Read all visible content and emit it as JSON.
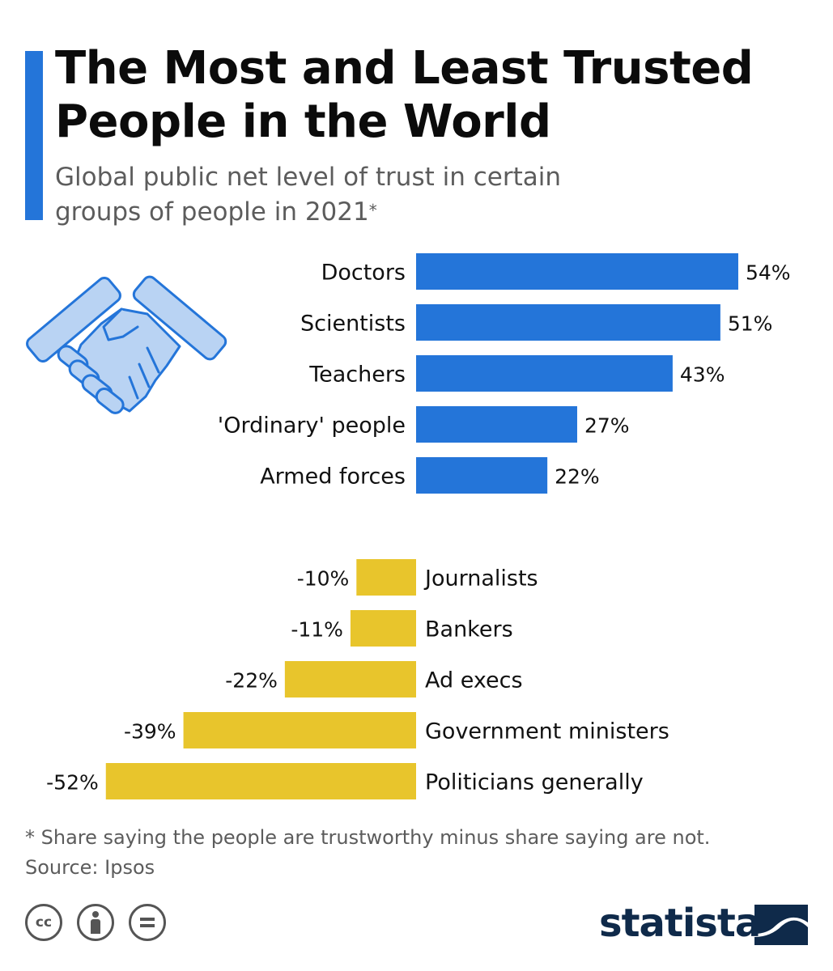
{
  "header": {
    "title_line1": "The Most and Least Trusted",
    "title_line2": "People in the World",
    "subtitle_line1": "Global public net level of trust in certain",
    "subtitle_line2": "groups of people in 2021",
    "subtitle_mark": "*"
  },
  "chart_data": {
    "type": "bar",
    "orientation": "horizontal",
    "categories": [
      "Doctors",
      "Scientists",
      "Teachers",
      "'Ordinary' people",
      "Armed forces",
      "Journalists",
      "Bankers",
      "Ad execs",
      "Government ministers",
      "Politicians generally"
    ],
    "values": [
      54,
      51,
      43,
      27,
      22,
      -10,
      -11,
      -22,
      -39,
      -52
    ],
    "value_labels": [
      "54%",
      "51%",
      "43%",
      "27%",
      "22%",
      "-10%",
      "-11%",
      "-22%",
      "-39%",
      "-52%"
    ],
    "unit": "%",
    "colors": {
      "positive": "#2475d9",
      "negative": "#e8c52c"
    },
    "grid": false,
    "legend": "none"
  },
  "illustration": {
    "icon": "handshake-icon"
  },
  "footer": {
    "note": "* Share saying the people are trustworthy minus share saying are not.",
    "source": "Source: Ipsos",
    "brand": "statista",
    "license_icons": [
      "cc-icon",
      "attribution-icon",
      "no-derivatives-icon"
    ]
  }
}
